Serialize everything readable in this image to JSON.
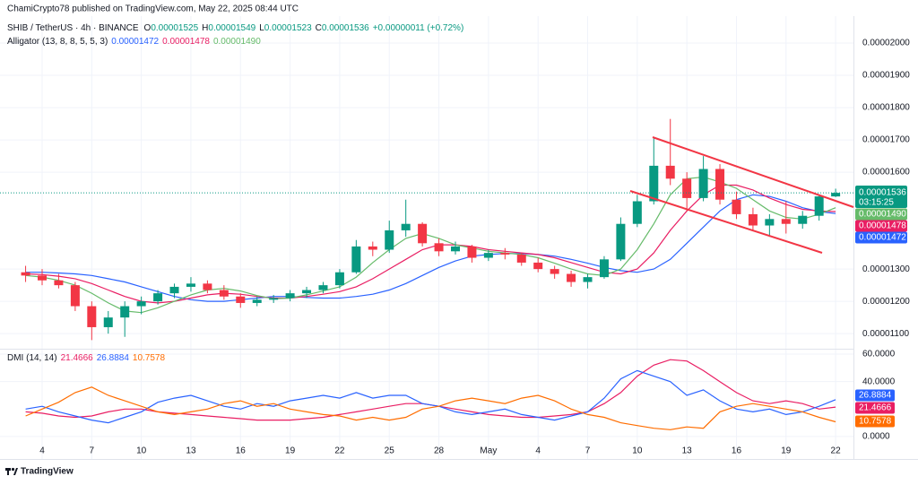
{
  "header": {
    "publisher": "ChamiCrypto78 published on TradingView.com, May 22, 2025 08:44 UTC"
  },
  "footer": {
    "brand": "TradingView"
  },
  "chart_data": [
    {
      "type": "candlestick",
      "symbol": "SHIB / TetherUS · 4h · BINANCE",
      "ohlc_labels": [
        "O",
        "H",
        "L",
        "C"
      ],
      "change": "+0.00000011 (+0.72%)",
      "countdown": "03:15:25",
      "categories": [
        null,
        "4",
        null,
        null,
        "7",
        null,
        null,
        "10",
        null,
        null,
        "13",
        null,
        null,
        "16",
        null,
        null,
        "19",
        null,
        null,
        "22",
        null,
        null,
        "25",
        null,
        null,
        "28",
        null,
        null,
        "May",
        null,
        null,
        "4",
        null,
        null,
        "7",
        null,
        null,
        "10",
        null,
        null,
        "13",
        null,
        null,
        "16",
        null,
        null,
        "19",
        null,
        null,
        "22"
      ],
      "open": [
        1.29e-05,
        1.28e-05,
        1.265e-05,
        1.25e-05,
        1.185e-05,
        1.12e-05,
        1.15e-05,
        1.185e-05,
        1.2e-05,
        1.225e-05,
        1.245e-05,
        1.255e-05,
        1.235e-05,
        1.215e-05,
        1.195e-05,
        1.205e-05,
        1.21e-05,
        1.225e-05,
        1.235e-05,
        1.25e-05,
        1.29e-05,
        1.37e-05,
        1.36e-05,
        1.42e-05,
        1.44e-05,
        1.38e-05,
        1.355e-05,
        1.37e-05,
        1.335e-05,
        1.35e-05,
        1.345e-05,
        1.32e-05,
        1.3e-05,
        1.285e-05,
        1.26e-05,
        1.275e-05,
        1.33e-05,
        1.44e-05,
        1.51e-05,
        1.62e-05,
        1.58e-05,
        1.52e-05,
        1.61e-05,
        1.515e-05,
        1.47e-05,
        1.435e-05,
        1.455e-05,
        1.44e-05,
        1.465e-05,
        1.525e-05
      ],
      "high": [
        1.31e-05,
        1.3e-05,
        1.285e-05,
        1.26e-05,
        1.2e-05,
        1.17e-05,
        1.2e-05,
        1.215e-05,
        1.235e-05,
        1.255e-05,
        1.275e-05,
        1.265e-05,
        1.25e-05,
        1.225e-05,
        1.215e-05,
        1.22e-05,
        1.235e-05,
        1.245e-05,
        1.26e-05,
        1.3e-05,
        1.39e-05,
        1.385e-05,
        1.45e-05,
        1.515e-05,
        1.445e-05,
        1.395e-05,
        1.385e-05,
        1.375e-05,
        1.36e-05,
        1.365e-05,
        1.35e-05,
        1.335e-05,
        1.31e-05,
        1.295e-05,
        1.285e-05,
        1.34e-05,
        1.46e-05,
        1.53e-05,
        1.705e-05,
        1.765e-05,
        1.6e-05,
        1.65e-05,
        1.625e-05,
        1.54e-05,
        1.49e-05,
        1.47e-05,
        1.51e-05,
        1.48e-05,
        1.53e-05,
        1.549e-05
      ],
      "low": [
        1.26e-05,
        1.25e-05,
        1.24e-05,
        1.17e-05,
        1.08e-05,
        1.1e-05,
        1.09e-05,
        1.16e-05,
        1.19e-05,
        1.21e-05,
        1.23e-05,
        1.225e-05,
        1.205e-05,
        1.18e-05,
        1.185e-05,
        1.195e-05,
        1.2e-05,
        1.21e-05,
        1.225e-05,
        1.24e-05,
        1.285e-05,
        1.34e-05,
        1.35e-05,
        1.4e-05,
        1.37e-05,
        1.34e-05,
        1.345e-05,
        1.32e-05,
        1.325e-05,
        1.33e-05,
        1.31e-05,
        1.29e-05,
        1.27e-05,
        1.245e-05,
        1.24e-05,
        1.27e-05,
        1.325e-05,
        1.43e-05,
        1.5e-05,
        1.56e-05,
        1.48e-05,
        1.51e-05,
        1.5e-05,
        1.455e-05,
        1.42e-05,
        1.4e-05,
        1.41e-05,
        1.425e-05,
        1.45e-05,
        1.523e-05
      ],
      "close": [
        1.28e-05,
        1.265e-05,
        1.25e-05,
        1.185e-05,
        1.12e-05,
        1.15e-05,
        1.185e-05,
        1.2e-05,
        1.225e-05,
        1.245e-05,
        1.255e-05,
        1.235e-05,
        1.215e-05,
        1.195e-05,
        1.205e-05,
        1.21e-05,
        1.225e-05,
        1.235e-05,
        1.25e-05,
        1.29e-05,
        1.37e-05,
        1.36e-05,
        1.42e-05,
        1.44e-05,
        1.38e-05,
        1.355e-05,
        1.37e-05,
        1.335e-05,
        1.35e-05,
        1.345e-05,
        1.32e-05,
        1.3e-05,
        1.285e-05,
        1.26e-05,
        1.275e-05,
        1.33e-05,
        1.44e-05,
        1.51e-05,
        1.62e-05,
        1.58e-05,
        1.52e-05,
        1.61e-05,
        1.515e-05,
        1.47e-05,
        1.435e-05,
        1.455e-05,
        1.44e-05,
        1.465e-05,
        1.525e-05,
        1.536e-05
      ],
      "up_color": "#089981",
      "down_color": "#f23645",
      "ylim": [
        1.056e-05,
        2.064e-05
      ],
      "yticks": [
        {
          "value": 2e-05,
          "label": "0.00002000"
        },
        {
          "value": 1.9e-05,
          "label": "0.00001900"
        },
        {
          "value": 1.8e-05,
          "label": "0.00001800"
        },
        {
          "value": 1.7e-05,
          "label": "0.00001700"
        },
        {
          "value": 1.6e-05,
          "label": "0.00001600"
        },
        {
          "value": 1.3e-05,
          "label": "0.00001300"
        },
        {
          "value": 1.2e-05,
          "label": "0.00001200"
        },
        {
          "value": 1.1e-05,
          "label": "0.00001100"
        }
      ],
      "grid": true,
      "indicator": "Alligator (13, 8, 8, 5, 5, 3)",
      "series": [
        {
          "color": "#2962ff",
          "values": [
            1.29e-05,
            1.29e-05,
            1.288e-05,
            1.285e-05,
            1.28e-05,
            1.27e-05,
            1.26e-05,
            1.245e-05,
            1.23e-05,
            1.215e-05,
            1.205e-05,
            1.2e-05,
            1.2e-05,
            1.205e-05,
            1.21e-05,
            1.215e-05,
            1.215e-05,
            1.212e-05,
            1.21e-05,
            1.21e-05,
            1.215e-05,
            1.222e-05,
            1.235e-05,
            1.255e-05,
            1.28e-05,
            1.305e-05,
            1.325e-05,
            1.34e-05,
            1.345e-05,
            1.348e-05,
            1.348e-05,
            1.345e-05,
            1.34e-05,
            1.33e-05,
            1.318e-05,
            1.305e-05,
            1.295e-05,
            1.29e-05,
            1.3e-05,
            1.33e-05,
            1.38e-05,
            1.43e-05,
            1.48e-05,
            1.515e-05,
            1.53e-05,
            1.525e-05,
            1.51e-05,
            1.49e-05,
            1.478e-05,
            1.472e-05
          ]
        },
        {
          "color": "#e91e63",
          "values": [
            1.285e-05,
            1.283e-05,
            1.278e-05,
            1.27e-05,
            1.255e-05,
            1.235e-05,
            1.215e-05,
            1.2e-05,
            1.195e-05,
            1.2e-05,
            1.21e-05,
            1.22e-05,
            1.225e-05,
            1.222e-05,
            1.215e-05,
            1.21e-05,
            1.21e-05,
            1.215e-05,
            1.222e-05,
            1.23e-05,
            1.245e-05,
            1.27e-05,
            1.3e-05,
            1.33e-05,
            1.36e-05,
            1.375e-05,
            1.375e-05,
            1.37e-05,
            1.36e-05,
            1.355e-05,
            1.35e-05,
            1.345e-05,
            1.335e-05,
            1.32e-05,
            1.305e-05,
            1.29e-05,
            1.285e-05,
            1.3e-05,
            1.35e-05,
            1.42e-05,
            1.48e-05,
            1.53e-05,
            1.56e-05,
            1.56e-05,
            1.545e-05,
            1.52e-05,
            1.5e-05,
            1.485e-05,
            1.48e-05,
            1.478e-05
          ]
        },
        {
          "color": "#66bb6a",
          "values": [
            1.28e-05,
            1.275e-05,
            1.265e-05,
            1.25e-05,
            1.225e-05,
            1.195e-05,
            1.17e-05,
            1.165e-05,
            1.18e-05,
            1.2e-05,
            1.22e-05,
            1.235e-05,
            1.24e-05,
            1.232e-05,
            1.218e-05,
            1.208e-05,
            1.21e-05,
            1.22e-05,
            1.232e-05,
            1.245e-05,
            1.275e-05,
            1.32e-05,
            1.36e-05,
            1.395e-05,
            1.41e-05,
            1.395e-05,
            1.375e-05,
            1.365e-05,
            1.355e-05,
            1.35e-05,
            1.345e-05,
            1.335e-05,
            1.318e-05,
            1.3e-05,
            1.285e-05,
            1.28e-05,
            1.3e-05,
            1.36e-05,
            1.44e-05,
            1.53e-05,
            1.58e-05,
            1.585e-05,
            1.57e-05,
            1.55e-05,
            1.515e-05,
            1.48e-05,
            1.46e-05,
            1.455e-05,
            1.47e-05,
            1.49e-05
          ],
          "value_labels": [
            null,
            null,
            null,
            null,
            null,
            null,
            null,
            null,
            null,
            null,
            null,
            null,
            null,
            null,
            null,
            null,
            null,
            null,
            null,
            null,
            null,
            null,
            null,
            null,
            null,
            null,
            null,
            null,
            null,
            null,
            null,
            null,
            null,
            null,
            null,
            null,
            null,
            null,
            null,
            null,
            null,
            null,
            null,
            null,
            null,
            null,
            null,
            null,
            null,
            "0.00001490"
          ]
        }
      ]
    },
    {
      "type": "line",
      "title": "DMI (14, 14)",
      "ylim": [
        -11.8,
        62
      ],
      "yticks": [
        {
          "value": 60,
          "label": "60.0000"
        },
        {
          "value": 40,
          "label": "40.0000"
        },
        {
          "value": 0,
          "label": "0.0000"
        }
      ],
      "series": [
        {
          "color": "#e91e63",
          "values": [
            18,
            17,
            15,
            14,
            15,
            18,
            20,
            20,
            18,
            17,
            16,
            15,
            14,
            13,
            12,
            12,
            12,
            13,
            14,
            16,
            18,
            20,
            22,
            24,
            24,
            22,
            20,
            18,
            16,
            15,
            14,
            14,
            15,
            16,
            18,
            24,
            32,
            44,
            52,
            56,
            55,
            48,
            40,
            32,
            26,
            24,
            26,
            24,
            20,
            21.4666
          ]
        },
        {
          "color": "#2962ff",
          "values": [
            20,
            22,
            18,
            15,
            12,
            10,
            14,
            18,
            25,
            28,
            30,
            26,
            22,
            20,
            24,
            22,
            26,
            28,
            30,
            28,
            32,
            28,
            30,
            30,
            24,
            22,
            18,
            16,
            18,
            20,
            16,
            14,
            12,
            15,
            18,
            28,
            42,
            48,
            44,
            40,
            30,
            34,
            26,
            20,
            18,
            20,
            16,
            18,
            22,
            26.8884
          ]
        },
        {
          "color": "#ff6d00",
          "values": [
            15,
            20,
            25,
            32,
            36,
            30,
            26,
            22,
            18,
            16,
            18,
            20,
            24,
            26,
            22,
            24,
            20,
            18,
            16,
            15,
            12,
            14,
            12,
            14,
            20,
            22,
            26,
            28,
            26,
            24,
            28,
            30,
            26,
            20,
            16,
            14,
            10,
            8,
            6,
            5,
            7,
            6,
            18,
            22,
            24,
            22,
            20,
            18,
            14,
            10.7578
          ]
        }
      ]
    }
  ]
}
